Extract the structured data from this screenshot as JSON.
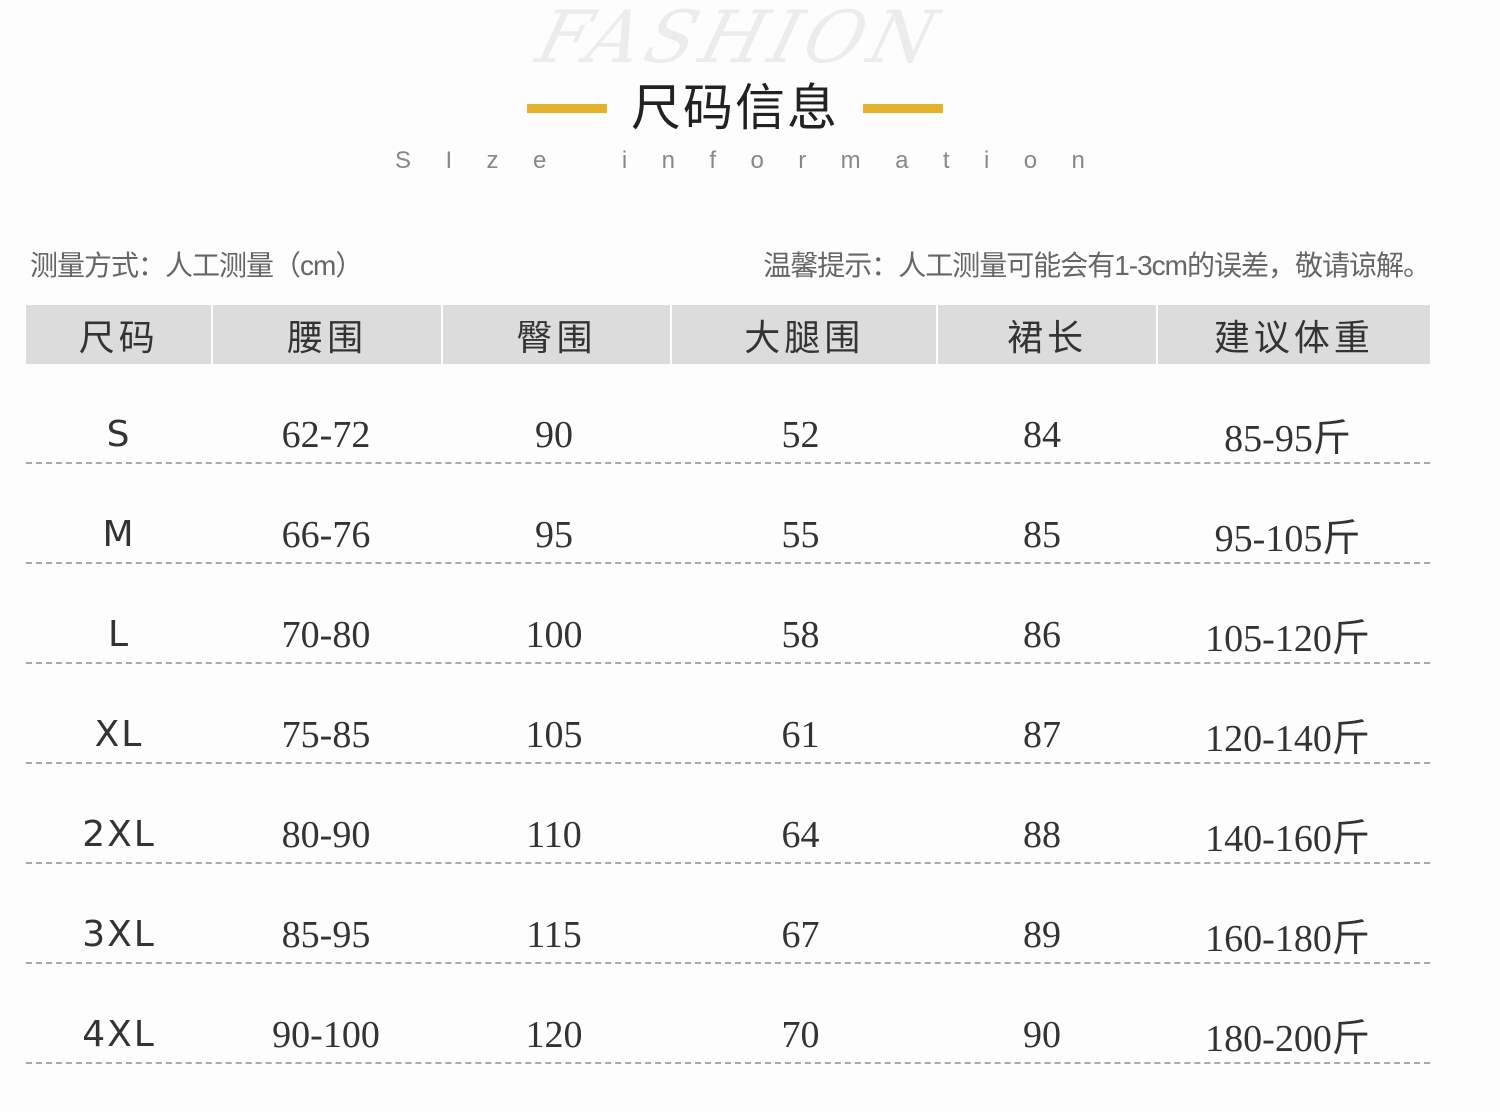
{
  "watermark": "FASHION",
  "header": {
    "title": "尺码信息",
    "subtitle_letters": [
      "S",
      "I",
      "z",
      "e",
      "",
      "i",
      "n",
      "f",
      "o",
      "r",
      "m",
      "a",
      "t",
      "i",
      "o",
      "n"
    ],
    "accent_color": "#e3b12a"
  },
  "notes": {
    "left": "测量方式：人工测量（cm）",
    "right": "温馨提示：人工测量可能会有1-3cm的误差，敬请谅解。"
  },
  "table": {
    "columns": [
      "尺码",
      "腰围",
      "臀围",
      "大腿围",
      "裙长",
      "建议体重"
    ],
    "rows": [
      [
        "S",
        "62-72",
        "90",
        "52",
        "84",
        "85-95斤"
      ],
      [
        "M",
        "66-76",
        "95",
        "55",
        "85",
        "95-105斤"
      ],
      [
        "L",
        "70-80",
        "100",
        "58",
        "86",
        "105-120斤"
      ],
      [
        "XL",
        "75-85",
        "105",
        "61",
        "87",
        "120-140斤"
      ],
      [
        "2XL",
        "80-90",
        "110",
        "64",
        "88",
        "140-160斤"
      ],
      [
        "3XL",
        "85-95",
        "115",
        "67",
        "89",
        "160-180斤"
      ],
      [
        "4XL",
        "90-100",
        "120",
        "70",
        "90",
        "180-200斤"
      ]
    ]
  }
}
